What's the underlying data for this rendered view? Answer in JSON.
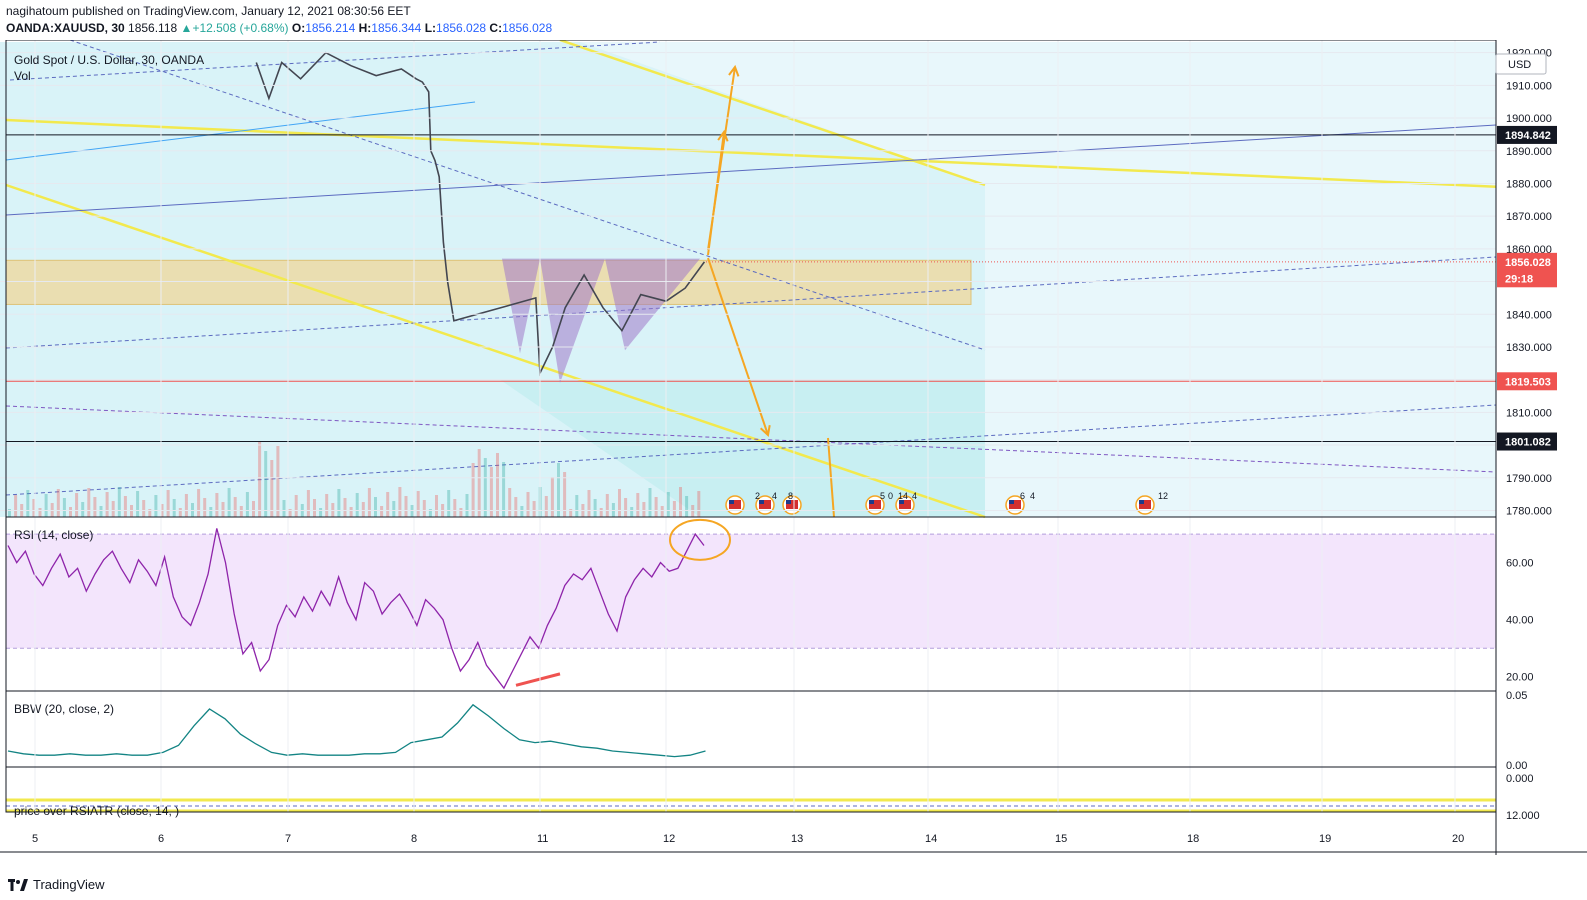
{
  "header": {
    "publisher_line": "nagihatoum published on TradingView.com, January 12, 2021 08:30:56 EET",
    "symbol": "OANDA:XAUUSD, 30",
    "last": "1856.118",
    "change": "+12.508 (+0.68%)",
    "open_label": "O:",
    "open": "1856.214",
    "high_label": "H:",
    "high": "1856.344",
    "low_label": "L:",
    "low": "1856.028",
    "close_label": "C:",
    "close": "1856.028"
  },
  "legend": {
    "title": "Gold Spot / U.S. Dollar, 30, OANDA",
    "vol": "Vol"
  },
  "colors": {
    "up": "#26a69a",
    "down": "#ef5350",
    "candle": "#434651",
    "yellow": "#f2e94e",
    "orange": "#f5a623",
    "purple": "#7e57c2",
    "rsi": "#8e24aa",
    "bbw": "#138484"
  },
  "icons": [
    "us-flag-event-icon",
    "tradingview-logo-icon"
  ],
  "footer": {
    "brand": "TradingView"
  },
  "chart_data": [
    {
      "type": "candlestick",
      "title": "Gold Spot / U.S. Dollar, 30, OANDA",
      "currency": "USD",
      "x_ticks": [
        "5",
        "6",
        "7",
        "8",
        "11",
        "12",
        "13",
        "14",
        "15",
        "18",
        "19",
        "20"
      ],
      "y_ticks": [
        1780,
        1790,
        1800,
        1810,
        1820,
        1830,
        1840,
        1850,
        1860,
        1870,
        1880,
        1890,
        1900,
        1910,
        1920
      ],
      "y_tick_labels": [
        "1780.000",
        "1790.000",
        "1800.000",
        "1810.000",
        "1820.000",
        "1830.000",
        "1840.000",
        "1850.000",
        "1860.000",
        "1870.000",
        "1880.000",
        "1890.000",
        "1900.000",
        "1910.000",
        "1920.000"
      ],
      "ylim": [
        1778,
        1922
      ],
      "price_tags": [
        {
          "label": "1894.842",
          "value": 1894.842,
          "color": "#131722"
        },
        {
          "label": "1856.028",
          "value": 1856.028,
          "color": "#ef5350"
        },
        {
          "label": "29:18",
          "value": 1851.0,
          "color": "#ef5350"
        },
        {
          "label": "1819.503",
          "value": 1819.503,
          "color": "#ef5350"
        },
        {
          "label": "1801.082",
          "value": 1801.082,
          "color": "#131722"
        }
      ],
      "series_path": [
        {
          "day": 6.75,
          "price": 1917
        },
        {
          "day": 6.85,
          "price": 1906
        },
        {
          "day": 6.95,
          "price": 1917
        },
        {
          "day": 7.1,
          "price": 1912
        },
        {
          "day": 7.3,
          "price": 1920
        },
        {
          "day": 7.5,
          "price": 1916
        },
        {
          "day": 7.7,
          "price": 1913
        },
        {
          "day": 7.9,
          "price": 1915
        },
        {
          "day": 8.05,
          "price": 1912
        },
        {
          "day": 8.2,
          "price": 1911
        },
        {
          "day": 8.35,
          "price": 1908
        },
        {
          "day": 8.4,
          "price": 1890
        },
        {
          "day": 8.5,
          "price": 1887
        },
        {
          "day": 8.6,
          "price": 1882
        },
        {
          "day": 8.7,
          "price": 1862
        },
        {
          "day": 8.8,
          "price": 1850
        },
        {
          "day": 8.95,
          "price": 1838
        },
        {
          "day": 10.9,
          "price": 1845
        },
        {
          "day": 11.0,
          "price": 1822
        },
        {
          "day": 11.1,
          "price": 1830
        },
        {
          "day": 11.2,
          "price": 1842
        },
        {
          "day": 11.35,
          "price": 1852
        },
        {
          "day": 11.5,
          "price": 1842
        },
        {
          "day": 11.65,
          "price": 1835
        },
        {
          "day": 11.8,
          "price": 1846
        },
        {
          "day": 12.0,
          "price": 1844
        },
        {
          "day": 12.15,
          "price": 1848
        },
        {
          "day": 12.3,
          "price": 1856
        }
      ],
      "volume_labels": [
        "2",
        "4",
        "8",
        "5",
        "0",
        "14",
        "4",
        "6",
        "4",
        "12"
      ],
      "pattern": "inverse head and shoulders"
    },
    {
      "type": "line",
      "title": "RSI (14, close)",
      "y_ticks": [
        20,
        40,
        60
      ],
      "y_tick_labels": [
        "20.00",
        "40.00",
        "60.00"
      ],
      "bands": [
        30,
        70
      ],
      "ylim": [
        15,
        76
      ],
      "values": [
        66,
        60,
        64,
        56,
        52,
        58,
        63,
        55,
        58,
        50,
        56,
        61,
        64,
        58,
        53,
        61,
        57,
        52,
        62,
        48,
        41,
        38,
        46,
        56,
        72,
        60,
        42,
        28,
        32,
        22,
        26,
        38,
        45,
        41,
        48,
        43,
        50,
        45,
        55,
        46,
        40,
        53,
        50,
        42,
        46,
        49,
        44,
        38,
        47,
        44,
        40,
        30,
        22,
        26,
        32,
        24,
        20,
        16,
        22,
        28,
        34,
        30,
        38,
        44,
        52,
        56,
        54,
        58,
        50,
        42,
        36,
        48,
        54,
        58,
        55,
        60,
        57,
        58,
        64,
        70,
        66
      ]
    },
    {
      "type": "line",
      "title": "BBW (20, close, 2)",
      "y_ticks": [
        0,
        0.05
      ],
      "y_tick_labels": [
        "0.00",
        "0.05"
      ],
      "ylim": [
        0,
        0.05
      ],
      "values": [
        0.01,
        0.008,
        0.007,
        0.007,
        0.008,
        0.007,
        0.007,
        0.008,
        0.007,
        0.007,
        0.009,
        0.014,
        0.028,
        0.04,
        0.033,
        0.022,
        0.015,
        0.009,
        0.007,
        0.008,
        0.007,
        0.007,
        0.007,
        0.008,
        0.008,
        0.009,
        0.016,
        0.018,
        0.02,
        0.03,
        0.043,
        0.035,
        0.026,
        0.018,
        0.016,
        0.017,
        0.015,
        0.013,
        0.012,
        0.01,
        0.009,
        0.008,
        0.007,
        0.006,
        0.007,
        0.01
      ]
    },
    {
      "type": "line",
      "title": "price over RSIATR (close, 14, )",
      "y_ticks": [
        0,
        12
      ],
      "y_tick_labels": [
        "0.000",
        "12.000"
      ]
    }
  ]
}
